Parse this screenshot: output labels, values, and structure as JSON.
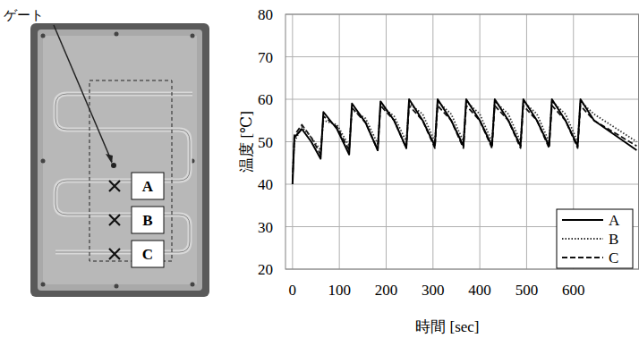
{
  "chart_data": {
    "type": "line",
    "x_label": "時間 [sec]",
    "y_label": "温度 [℃]",
    "x": [
      0,
      4,
      20,
      40,
      60,
      66,
      95,
      121,
      127,
      156,
      182,
      188,
      217,
      243,
      249,
      278,
      304,
      310,
      339,
      365,
      371,
      400,
      426,
      432,
      461,
      487,
      493,
      522,
      548,
      554,
      583,
      609,
      615,
      644,
      735
    ],
    "series": [
      {
        "name": "A",
        "color": "#000000",
        "line_style": "solid",
        "values": [
          40,
          51,
          53,
          50,
          46,
          57,
          53,
          47,
          59,
          54.5,
          48,
          59.5,
          55,
          48.5,
          60,
          55,
          49,
          60,
          55,
          49,
          60,
          55,
          49,
          60,
          55,
          49,
          60,
          55,
          49,
          60,
          55,
          49,
          60,
          55,
          48
        ]
      },
      {
        "name": "B",
        "color": "#333333",
        "line_style": "dotted",
        "values": [
          42,
          50,
          53.5,
          51,
          48,
          55,
          54,
          49,
          57.5,
          55.5,
          49.5,
          58.5,
          56,
          50,
          59,
          56.5,
          50,
          59.5,
          56.5,
          50,
          59.5,
          56.5,
          50,
          59.5,
          56.5,
          50,
          59.5,
          56.5,
          50,
          59.5,
          56.5,
          50,
          59.5,
          56.5,
          50
        ]
      },
      {
        "name": "C",
        "color": "#111111",
        "line_style": "dashed",
        "values": [
          41,
          51.5,
          54,
          51,
          47,
          56,
          53.5,
          48,
          58,
          54.5,
          48,
          58.5,
          55,
          48.5,
          58.5,
          55,
          48.5,
          58.5,
          55,
          48.5,
          58.5,
          55,
          48.5,
          58.5,
          55,
          48.5,
          58.5,
          55,
          48.5,
          58.5,
          55,
          48.5,
          58.5,
          55,
          49
        ]
      }
    ],
    "xlim": [
      -15,
      740
    ],
    "xticks": [
      0,
      100,
      200,
      300,
      400,
      500,
      600
    ],
    "ylim": [
      20,
      80
    ],
    "yticks": [
      20,
      30,
      40,
      50,
      60,
      70,
      80
    ],
    "grid": true,
    "legend": "lower right"
  },
  "figure": {
    "gate_label": "ゲート",
    "points": [
      "A",
      "B",
      "C"
    ]
  }
}
